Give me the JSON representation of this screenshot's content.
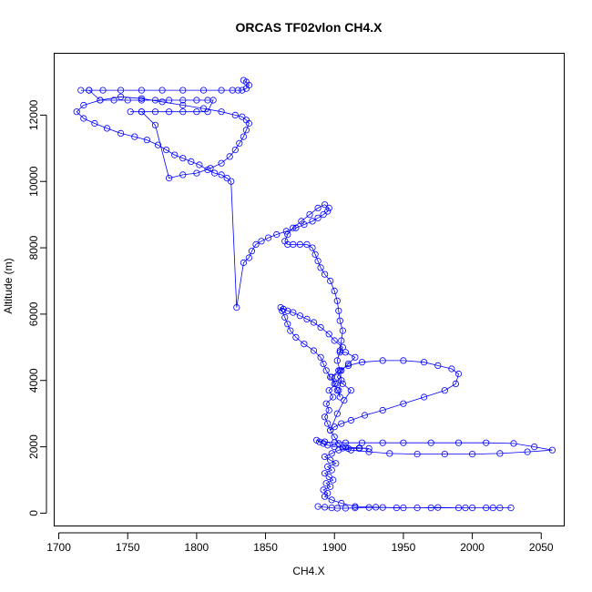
{
  "chart_data": {
    "type": "line",
    "title": "ORCAS TF02vlon CH4.X",
    "xlabel": "CH4.X",
    "ylabel": "Altitude (m)",
    "xlim": [
      1697,
      2067
    ],
    "ylim": [
      -400,
      13850
    ],
    "xticks": [
      1700,
      1750,
      1800,
      1850,
      1900,
      1950,
      2000,
      2050
    ],
    "yticks": [
      0,
      2000,
      4000,
      6000,
      8000,
      10000,
      12000
    ],
    "color": "#0000ff",
    "marker": "open-circle",
    "grid": false,
    "series": [
      {
        "x": [
          1888,
          1893,
          1898,
          1902,
          1908,
          1915,
          1925,
          1935,
          1945,
          1960,
          1975,
          1990,
          2000,
          2010,
          2020,
          2028,
          2015,
          1995,
          1970,
          1950,
          1930,
          1915,
          1905,
          1898,
          1893,
          1895,
          1892,
          1897,
          1894,
          1899,
          1896,
          1893,
          1898,
          1895,
          1901,
          1897,
          1893,
          1898,
          1903,
          1910,
          1918,
          1925,
          1918,
          1908,
          1900,
          1895,
          1892,
          1889,
          1887,
          1893,
          1900,
          1908,
          1920,
          1935,
          1950,
          1970,
          1990,
          2010,
          2030,
          2045,
          2058,
          2040,
          2020,
          2000,
          1980,
          1960,
          1940,
          1925,
          1912,
          1906,
          1903,
          1900,
          1897,
          1895,
          1893,
          1896,
          1894,
          1899,
          1896,
          1901,
          1898,
          1903,
          1910,
          1920,
          1935,
          1950,
          1965,
          1975,
          1985,
          1990,
          1988,
          1980,
          1965,
          1950,
          1935,
          1922,
          1912,
          1905,
          1900,
          1897,
          1902,
          1907,
          1912,
          1906,
          1902,
          1905,
          1910,
          1915,
          1908,
          1904,
          1906,
          1900,
          1896,
          1890,
          1885,
          1880,
          1875,
          1870,
          1866,
          1863,
          1861,
          1862,
          1864,
          1866,
          1868,
          1872,
          1878,
          1885,
          1890,
          1892,
          1894,
          1897,
          1900,
          1902,
          1904,
          1903,
          1905,
          1904,
          1902,
          1904,
          1905,
          1906,
          1904,
          1903,
          1902,
          1900,
          1897,
          1893,
          1890,
          1888,
          1886,
          1884,
          1880,
          1875,
          1870,
          1866,
          1864,
          1866,
          1870,
          1876,
          1882,
          1888,
          1893,
          1896,
          1895,
          1892,
          1888,
          1884,
          1878,
          1872,
          1865,
          1858,
          1852,
          1847,
          1843,
          1840,
          1838,
          1834,
          1829,
          1825,
          1822,
          1818,
          1813,
          1808,
          1802,
          1796,
          1790,
          1784,
          1778,
          1772,
          1764,
          1755,
          1745,
          1735,
          1726,
          1718,
          1713,
          1718,
          1730,
          1745,
          1760,
          1775,
          1790,
          1805,
          1818,
          1828,
          1833,
          1836,
          1838,
          1836,
          1834,
          1831,
          1828,
          1824,
          1818,
          1810,
          1800,
          1790,
          1780,
          1770,
          1760,
          1752,
          1760,
          1770,
          1780,
          1790,
          1800,
          1808,
          1812,
          1808,
          1800,
          1790,
          1780,
          1770,
          1760,
          1750,
          1740,
          1730,
          1722,
          1716,
          1722,
          1732,
          1745,
          1760,
          1775,
          1790,
          1805,
          1818,
          1826,
          1830,
          1833,
          1836,
          1838,
          1836,
          1834
        ],
        "y": [
          200,
          180,
          160,
          150,
          150,
          160,
          170,
          170,
          160,
          160,
          170,
          160,
          160,
          160,
          160,
          160,
          160,
          160,
          160,
          160,
          180,
          200,
          300,
          400,
          500,
          600,
          700,
          800,
          900,
          1000,
          1100,
          1200,
          1300,
          1400,
          1500,
          1600,
          1700,
          1800,
          1900,
          1950,
          1950,
          1950,
          1970,
          1990,
          2000,
          2050,
          2100,
          2150,
          2200,
          2150,
          2130,
          2120,
          2120,
          2120,
          2120,
          2120,
          2120,
          2120,
          2100,
          2000,
          1900,
          1850,
          1800,
          1780,
          1780,
          1780,
          1800,
          1850,
          1900,
          1960,
          2100,
          2300,
          2500,
          2700,
          2900,
          3100,
          3300,
          3500,
          3700,
          3900,
          4100,
          4300,
          4450,
          4550,
          4600,
          4600,
          4550,
          4450,
          4350,
          4200,
          3900,
          3700,
          3500,
          3300,
          3100,
          2950,
          2800,
          2700,
          2600,
          2500,
          3000,
          3400,
          3700,
          3900,
          4100,
          4300,
          4500,
          4700,
          4850,
          4850,
          5000,
          5200,
          5400,
          5600,
          5750,
          5850,
          5950,
          6050,
          6100,
          6150,
          6200,
          6100,
          5900,
          5700,
          5500,
          5300,
          5100,
          4900,
          4700,
          4500,
          4300,
          4100,
          3900,
          3700,
          3500,
          3700,
          4000,
          4300,
          4600,
          4900,
          5200,
          5500,
          5800,
          6100,
          6400,
          6700,
          7000,
          7200,
          7400,
          7600,
          7800,
          8000,
          8100,
          8100,
          8100,
          8100,
          8200,
          8400,
          8600,
          8800,
          9000,
          9200,
          9300,
          9200,
          9100,
          9000,
          8900,
          8800,
          8700,
          8600,
          8500,
          8400,
          8300,
          8200,
          8100,
          7900,
          7700,
          7550,
          6200,
          10000,
          10100,
          10200,
          10250,
          10350,
          10500,
          10600,
          10700,
          10800,
          10950,
          11100,
          11250,
          11350,
          11450,
          11600,
          11750,
          11900,
          12100,
          12300,
          12450,
          12550,
          12500,
          12400,
          12300,
          12200,
          12100,
          12000,
          11950,
          11850,
          11750,
          11550,
          11350,
          11150,
          10950,
          10750,
          10550,
          10400,
          10250,
          10200,
          10100,
          11700,
          12100,
          12100,
          12100,
          12100,
          12100,
          12100,
          12100,
          12100,
          12450,
          12450,
          12450,
          12450,
          12450,
          12450,
          12450,
          12450,
          12450,
          12450,
          12750,
          12750,
          12750,
          12750,
          12750,
          12750,
          12750,
          12750,
          12750,
          12750,
          12750,
          12750,
          12750,
          12800,
          12900,
          13000,
          13050
        ]
      }
    ]
  }
}
